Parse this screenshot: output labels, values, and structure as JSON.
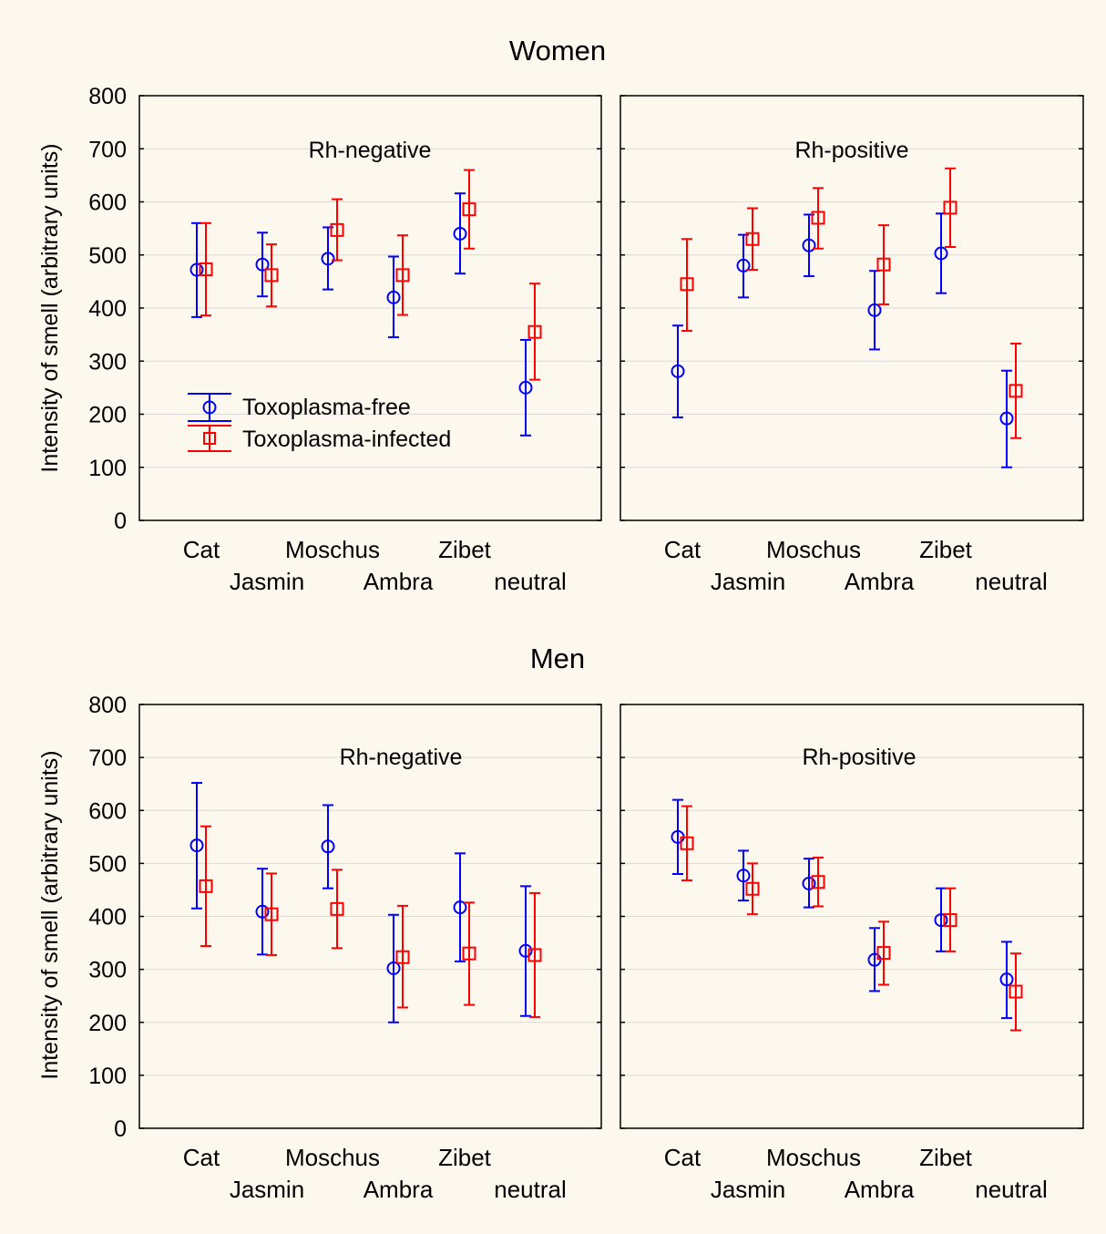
{
  "figure": {
    "background": "#fdf8ee",
    "row_titles": [
      "Women",
      "Men"
    ],
    "ylabel": "Intensity of smell (arbitrary units)",
    "legend": {
      "free_label": "Toxoplasma-free",
      "infected_label": "Toxoplasma-infected",
      "placement": "inside Women / Rh-negative panel, lower-left"
    },
    "colors": {
      "free": "#0000ff",
      "infected": "#ff0000",
      "grid": "#d9d9d9",
      "axis": "#000000"
    }
  },
  "chart_data": [
    {
      "type": "scatter",
      "subtitle": "Rh-negative",
      "group": "Women",
      "categories": [
        "Cat",
        "Jasmin",
        "Moschus",
        "Ambra",
        "Zibet",
        "neutral"
      ],
      "ylim": [
        0,
        800
      ],
      "yticks": [
        0,
        100,
        200,
        300,
        400,
        500,
        600,
        700,
        800
      ],
      "grid": true,
      "series": [
        {
          "name": "Toxoplasma-free",
          "marker": "circle",
          "color": "#0000ff",
          "values": [
            472,
            482,
            493,
            420,
            540,
            250
          ],
          "lower": [
            383,
            422,
            435,
            345,
            465,
            160
          ],
          "upper": [
            560,
            542,
            552,
            497,
            616,
            340
          ]
        },
        {
          "name": "Toxoplasma-infected",
          "marker": "square",
          "color": "#ff0000",
          "values": [
            473,
            462,
            547,
            462,
            586,
            355
          ],
          "lower": [
            386,
            403,
            490,
            387,
            512,
            265
          ],
          "upper": [
            560,
            520,
            605,
            537,
            660,
            446
          ]
        }
      ]
    },
    {
      "type": "scatter",
      "subtitle": "Rh-positive",
      "group": "Women",
      "categories": [
        "Cat",
        "Jasmin",
        "Moschus",
        "Ambra",
        "Zibet",
        "neutral"
      ],
      "ylim": [
        0,
        800
      ],
      "yticks": [
        0,
        100,
        200,
        300,
        400,
        500,
        600,
        700,
        800
      ],
      "grid": true,
      "series": [
        {
          "name": "Toxoplasma-free",
          "marker": "circle",
          "color": "#0000ff",
          "values": [
            281,
            480,
            518,
            396,
            503,
            192
          ],
          "lower": [
            194,
            420,
            460,
            322,
            428,
            100
          ],
          "upper": [
            367,
            538,
            576,
            470,
            578,
            282
          ]
        },
        {
          "name": "Toxoplasma-infected",
          "marker": "square",
          "color": "#ff0000",
          "values": [
            445,
            530,
            570,
            482,
            589,
            244
          ],
          "lower": [
            357,
            472,
            512,
            407,
            515,
            155
          ],
          "upper": [
            530,
            588,
            626,
            556,
            663,
            333
          ]
        }
      ]
    },
    {
      "type": "scatter",
      "subtitle": "Rh-negative",
      "group": "Men",
      "categories": [
        "Cat",
        "Jasmin",
        "Moschus",
        "Ambra",
        "Zibet",
        "neutral"
      ],
      "ylim": [
        0,
        800
      ],
      "yticks": [
        0,
        100,
        200,
        300,
        400,
        500,
        600,
        700,
        800
      ],
      "grid": true,
      "series": [
        {
          "name": "Toxoplasma-free",
          "marker": "circle",
          "color": "#0000ff",
          "values": [
            534,
            409,
            532,
            302,
            417,
            335
          ],
          "lower": [
            415,
            328,
            453,
            200,
            315,
            212
          ],
          "upper": [
            652,
            490,
            610,
            403,
            519,
            457
          ]
        },
        {
          "name": "Toxoplasma-infected",
          "marker": "square",
          "color": "#ff0000",
          "values": [
            457,
            404,
            414,
            323,
            330,
            327
          ],
          "lower": [
            344,
            327,
            340,
            228,
            233,
            210
          ],
          "upper": [
            570,
            481,
            488,
            420,
            426,
            444
          ]
        }
      ]
    },
    {
      "type": "scatter",
      "subtitle": "Rh-positive",
      "group": "Men",
      "categories": [
        "Cat",
        "Jasmin",
        "Moschus",
        "Ambra",
        "Zibet",
        "neutral"
      ],
      "ylim": [
        0,
        800
      ],
      "yticks": [
        0,
        100,
        200,
        300,
        400,
        500,
        600,
        700,
        800
      ],
      "grid": true,
      "series": [
        {
          "name": "Toxoplasma-free",
          "marker": "circle",
          "color": "#0000ff",
          "values": [
            550,
            477,
            462,
            318,
            393,
            281
          ],
          "lower": [
            480,
            430,
            417,
            259,
            334,
            208
          ],
          "upper": [
            620,
            524,
            509,
            378,
            453,
            352
          ]
        },
        {
          "name": "Toxoplasma-infected",
          "marker": "square",
          "color": "#ff0000",
          "values": [
            538,
            452,
            465,
            331,
            393,
            258
          ],
          "lower": [
            468,
            404,
            419,
            271,
            334,
            185
          ],
          "upper": [
            608,
            500,
            511,
            390,
            453,
            330
          ]
        }
      ]
    }
  ]
}
